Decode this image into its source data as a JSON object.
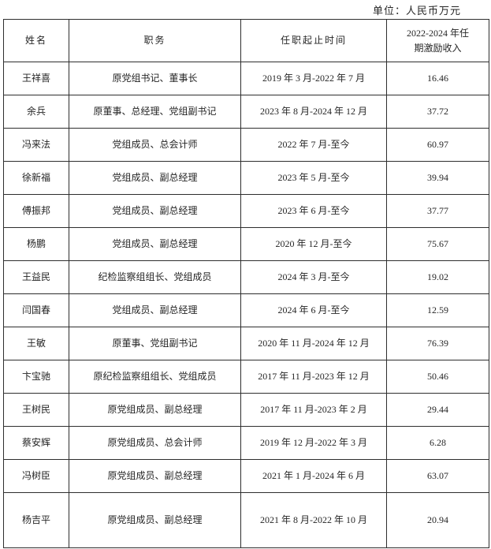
{
  "unit_label": "单位：人民币万元",
  "table": {
    "headers": [
      "姓名",
      "职务",
      "任职起止时间",
      "2022-2024 年任\n期激励收入"
    ],
    "rows": [
      {
        "name": "王祥喜",
        "position": "原党组书记、董事长",
        "term": "2019 年 3 月-2022 年 7 月",
        "income": "16.46"
      },
      {
        "name": "余兵",
        "position": "原董事、总经理、党组副书记",
        "term": "2023 年 8 月-2024 年 12 月",
        "income": "37.72"
      },
      {
        "name": "冯来法",
        "position": "党组成员、总会计师",
        "term": "2022 年 7 月-至今",
        "income": "60.97"
      },
      {
        "name": "徐新福",
        "position": "党组成员、副总经理",
        "term": "2023 年 5 月-至今",
        "income": "39.94"
      },
      {
        "name": "傅振邦",
        "position": "党组成员、副总经理",
        "term": "2023 年 6 月-至今",
        "income": "37.77"
      },
      {
        "name": "杨鹏",
        "position": "党组成员、副总经理",
        "term": "2020 年 12 月-至今",
        "income": "75.67"
      },
      {
        "name": "王益民",
        "position": "纪检监察组组长、党组成员",
        "term": "2024 年 3 月-至今",
        "income": "19.02"
      },
      {
        "name": "闫国春",
        "position": "党组成员、副总经理",
        "term": "2024 年 6 月-至今",
        "income": "12.59"
      },
      {
        "name": "王敏",
        "position": "原董事、党组副书记",
        "term": "2020 年 11 月-2024 年 12 月",
        "income": "76.39"
      },
      {
        "name": "卞宝驰",
        "position": "原纪检监察组组长、党组成员",
        "term": "2017 年 11 月-2023 年 12 月",
        "income": "50.46"
      },
      {
        "name": "王树民",
        "position": "原党组成员、副总经理",
        "term": "2017 年 11 月-2023 年 2 月",
        "income": "29.44"
      },
      {
        "name": "蔡安辉",
        "position": "原党组成员、总会计师",
        "term": "2019 年 12 月-2022 年 3 月",
        "income": "6.28"
      },
      {
        "name": "冯树臣",
        "position": "原党组成员、副总经理",
        "term": "2021 年 1 月-2024 年 6 月",
        "income": "63.07"
      },
      {
        "name": "杨吉平",
        "position": "原党组成员、副总经理",
        "term": "2021 年 8 月-2022 年 10 月",
        "income": "20.94"
      }
    ]
  }
}
